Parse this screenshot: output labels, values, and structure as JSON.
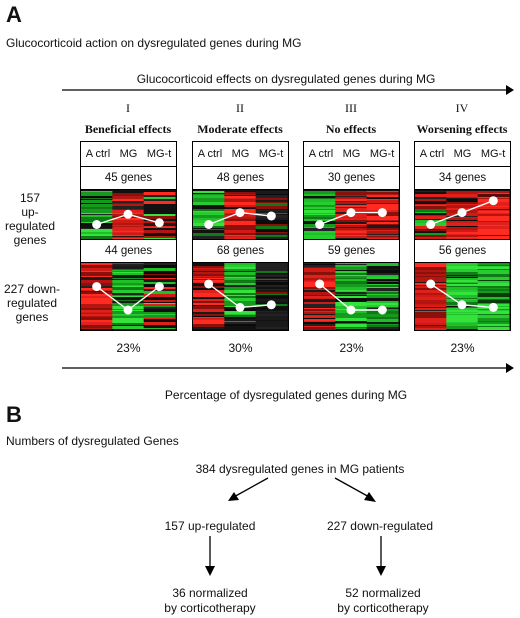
{
  "panelA": {
    "letter": "A",
    "subtitle": "Glucocorticoid action on dysregulated genes during MG",
    "top_arrow_label": "Glucocorticoid effects on dysregulated genes during MG",
    "bottom_arrow_label": "Percentage of dysregulated genes during MG",
    "row_labels": {
      "up": [
        "157",
        "up-regulated",
        "genes"
      ],
      "down": [
        "227 down-",
        "regulated",
        "genes"
      ]
    },
    "column_headers": [
      "A ctrl",
      "MG",
      "MG-t"
    ],
    "groups": [
      {
        "roman": "I",
        "title": "Beneficial effects",
        "up_count": "45 genes",
        "down_count": "44 genes",
        "percent": "23%",
        "up_profile": [
          0.25,
          0.55,
          0.3
        ],
        "down_profile": [
          0.7,
          0.25,
          0.7
        ],
        "up_colors": [
          "green",
          "red",
          "mixed"
        ],
        "down_colors": [
          "red",
          "green",
          "mixed"
        ]
      },
      {
        "roman": "II",
        "title": "Moderate effects",
        "up_count": "48 genes",
        "down_count": "68 genes",
        "percent": "30%",
        "up_profile": [
          0.25,
          0.6,
          0.5
        ],
        "down_profile": [
          0.75,
          0.3,
          0.35
        ],
        "up_colors": [
          "green",
          "red",
          "mixeddark"
        ],
        "down_colors": [
          "red",
          "green",
          "mixeddark"
        ]
      },
      {
        "roman": "III",
        "title": "No effects",
        "up_count": "30 genes",
        "down_count": "59 genes",
        "percent": "23%",
        "up_profile": [
          0.25,
          0.6,
          0.6
        ],
        "down_profile": [
          0.75,
          0.25,
          0.25
        ],
        "up_colors": [
          "green",
          "red",
          "red"
        ],
        "down_colors": [
          "red",
          "green",
          "green"
        ]
      },
      {
        "roman": "IV",
        "title": "Worsening effects",
        "up_count": "34 genes",
        "down_count": "56 genes",
        "percent": "23%",
        "up_profile": [
          0.25,
          0.6,
          0.95
        ],
        "down_profile": [
          0.75,
          0.35,
          0.3
        ],
        "up_colors": [
          "mixed",
          "red",
          "brightred"
        ],
        "down_colors": [
          "red",
          "green",
          "brightgreen"
        ]
      }
    ]
  },
  "panelB": {
    "letter": "B",
    "subtitle": "Numbers of dysregulated Genes",
    "root": "384 dysregulated genes in MG patients",
    "left_mid": "157 up-regulated",
    "right_mid": "227 down-regulated",
    "left_bottom": [
      "36 normalized",
      "by corticotherapy"
    ],
    "right_bottom": [
      "52 normalized",
      "by corticotherapy"
    ]
  },
  "colors": {
    "red": "#e0201a",
    "green": "#1fbf2a",
    "black": "#111111"
  }
}
